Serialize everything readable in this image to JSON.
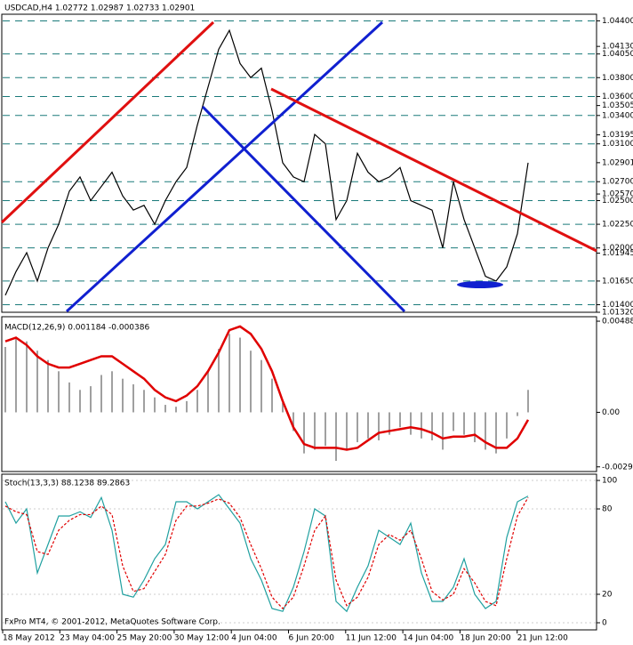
{
  "chart_data": [
    {
      "type": "line",
      "title": "USDCAD,H4  1.02772 1.02987 1.02733 1.02901",
      "ylim": [
        1.0132,
        1.0447
      ],
      "yticks": [
        {
          "value": 1.044,
          "label": "1.04400"
        },
        {
          "value": 1.0413,
          "label": "1.04130"
        },
        {
          "value": 1.0405,
          "label": "1.04050"
        },
        {
          "value": 1.038,
          "label": "1.03800"
        },
        {
          "value": 1.036,
          "label": "1.03600"
        },
        {
          "value": 1.03505,
          "label": "1.03505"
        },
        {
          "value": 1.034,
          "label": "1.03400"
        },
        {
          "value": 1.03195,
          "label": "1.03195"
        },
        {
          "value": 1.031,
          "label": "1.03100"
        },
        {
          "value": 1.02901,
          "label": "1.02901"
        },
        {
          "value": 1.027,
          "label": "1.02700"
        },
        {
          "value": 1.0257,
          "label": "1.02570"
        },
        {
          "value": 1.025,
          "label": "1.02500"
        },
        {
          "value": 1.0225,
          "label": "1.02250"
        },
        {
          "value": 1.02,
          "label": "1.02000"
        },
        {
          "value": 1.01945,
          "label": "1.01945"
        },
        {
          "value": 1.0165,
          "label": "1.01650"
        },
        {
          "value": 1.014,
          "label": "1.01400"
        },
        {
          "value": 1.0132,
          "label": "1.01320"
        }
      ],
      "levels": [
        1.044,
        1.0405,
        1.038,
        1.036,
        1.034,
        1.031,
        1.027,
        1.025,
        1.0225,
        1.02,
        1.0165,
        1.014
      ],
      "series": [
        {
          "color": "#000000",
          "values": [
            1.015,
            1.0175,
            1.0195,
            1.0165,
            1.02,
            1.0225,
            1.026,
            1.0275,
            1.025,
            1.0265,
            1.028,
            1.0255,
            1.024,
            1.0245,
            1.0225,
            1.025,
            1.027,
            1.0285,
            1.033,
            1.037,
            1.041,
            1.043,
            1.0395,
            1.038,
            1.039,
            1.0345,
            1.029,
            1.0275,
            1.027,
            1.032,
            1.031,
            1.023,
            1.025,
            1.03,
            1.028,
            1.027,
            1.0275,
            1.0285,
            1.025,
            1.0245,
            1.024,
            1.02,
            1.027,
            1.023,
            1.02,
            1.017,
            1.0165,
            1.018,
            1.0215,
            1.029
          ]
        }
      ]
    },
    {
      "type": "macd",
      "title": "MACD(12,26,9) 0.001184 -0.000386",
      "ylim": [
        -0.00317,
        0.00512
      ],
      "yticks": [
        {
          "value": 0.00488,
          "label": "0.00488"
        },
        {
          "value": 0,
          "label": "0.00"
        },
        {
          "value": -0.00292,
          "label": "-0.00292"
        }
      ],
      "series": [
        {
          "color": "#a0a0a0",
          "values": [
            0.0035,
            0.004,
            0.0038,
            0.0033,
            0.0028,
            0.0022,
            0.0016,
            0.0012,
            0.0014,
            0.002,
            0.0022,
            0.0018,
            0.0015,
            0.0012,
            0.0008,
            0.0004,
            0.0003,
            0.0006,
            0.0012,
            0.0022,
            0.0034,
            0.0042,
            0.004,
            0.0033,
            0.0028,
            0.0018,
            0.0005,
            -0.001,
            -0.0022,
            -0.002,
            -0.0018,
            -0.0026,
            -0.002,
            -0.0016,
            -0.0014,
            -0.0015,
            -0.0012,
            -0.0008,
            -0.0012,
            -0.0014,
            -0.0015,
            -0.002,
            -0.001,
            -0.0012,
            -0.0016,
            -0.002,
            -0.0022,
            -0.0014,
            -0.0002,
            0.0012
          ]
        },
        {
          "color": "#e00000",
          "values": [
            0.0038,
            0.004,
            0.0036,
            0.003,
            0.0026,
            0.0024,
            0.0024,
            0.0026,
            0.0028,
            0.003,
            0.003,
            0.0026,
            0.0022,
            0.0018,
            0.0012,
            0.0008,
            0.0006,
            0.0009,
            0.0014,
            0.0022,
            0.0032,
            0.0044,
            0.0046,
            0.0042,
            0.0034,
            0.0022,
            0.0006,
            -0.0008,
            -0.0017,
            -0.0019,
            -0.0019,
            -0.0019,
            -0.002,
            -0.0019,
            -0.0015,
            -0.0011,
            -0.001,
            -0.0009,
            -0.0008,
            -0.0009,
            -0.0011,
            -0.0014,
            -0.0013,
            -0.0013,
            -0.0012,
            -0.0016,
            -0.0019,
            -0.0019,
            -0.0014,
            -0.0004
          ]
        }
      ]
    },
    {
      "type": "line",
      "title": "Stoch(13,3,3) 88.1238 89.2863",
      "ylim": [
        -5,
        104.4
      ],
      "yticks": [
        100,
        80,
        20,
        0
      ],
      "series": [
        {
          "color": "#20a0a0",
          "values": [
            85,
            70,
            80,
            35,
            55,
            75,
            75,
            78,
            74,
            88,
            65,
            20,
            18,
            30,
            45,
            55,
            85,
            85,
            80,
            85,
            90,
            80,
            70,
            45,
            30,
            10,
            8,
            25,
            50,
            80,
            75,
            15,
            8,
            25,
            40,
            65,
            60,
            55,
            70,
            35,
            15,
            15,
            25,
            45,
            20,
            10,
            15,
            60,
            85,
            89
          ]
        },
        {
          "color": "#e00000",
          "dashed": true,
          "values": [
            82,
            78,
            76,
            50,
            48,
            65,
            72,
            76,
            76,
            82,
            76,
            40,
            22,
            24,
            36,
            48,
            72,
            82,
            82,
            84,
            87,
            84,
            74,
            55,
            38,
            18,
            10,
            18,
            40,
            65,
            75,
            30,
            12,
            18,
            32,
            55,
            62,
            58,
            65,
            45,
            22,
            16,
            20,
            38,
            28,
            15,
            12,
            45,
            75,
            88
          ]
        }
      ]
    }
  ],
  "x_labels": [
    "18 May 2012",
    "23 May 04:00",
    "25 May 20:00",
    "30 May 12:00",
    "4 Jun 04:00",
    "6 Jun 20:00",
    "11 Jun 12:00",
    "14 Jun 04:00",
    "18 Jun 20:00",
    "21 Jun 12:00"
  ],
  "footer": "FxPro MT4, © 2001-2012, MetaQuotes Software Corp."
}
